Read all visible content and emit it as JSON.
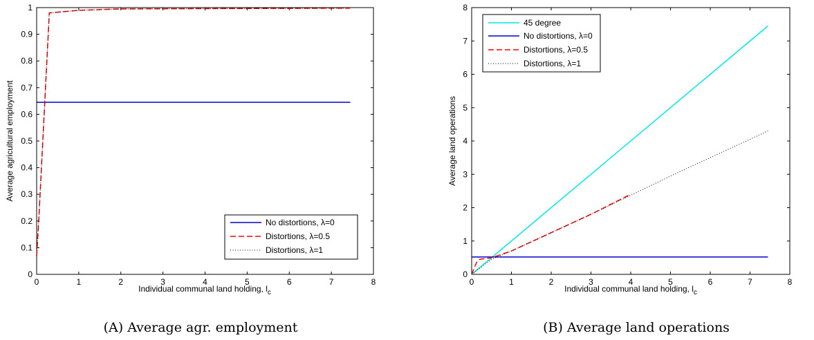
{
  "chart_data": [
    {
      "type": "line",
      "caption_tag": "(A)",
      "caption_text": "Average agr. employment",
      "xlabel": "Individual communal land holding, l",
      "xlabel_sub": "c",
      "ylabel": "Average agricultural employment",
      "xlim": [
        0,
        8
      ],
      "ylim": [
        0,
        1
      ],
      "xticks": [
        0,
        1,
        2,
        3,
        4,
        5,
        6,
        7,
        8
      ],
      "yticks": [
        0,
        0.1,
        0.2,
        0.3,
        0.4,
        0.5,
        0.6,
        0.7,
        0.8,
        0.9,
        1
      ],
      "legend_position": "lower-right",
      "series": [
        {
          "name": "No distortions, λ=0",
          "color": "#0000cc",
          "style": "solid",
          "points": [
            [
              0,
              0.645
            ],
            [
              7.45,
              0.645
            ]
          ]
        },
        {
          "name": "Distortions, λ=0.5",
          "color": "#ff0000",
          "style": "dashed",
          "points": [
            [
              0,
              0.07
            ],
            [
              0.05,
              0.2
            ],
            [
              0.3,
              0.98
            ],
            [
              1,
              0.99
            ],
            [
              2,
              0.995
            ],
            [
              7.45,
              0.998
            ]
          ]
        },
        {
          "name": "Distortions, λ=1",
          "color": "#000000",
          "style": "dotted",
          "points": [
            [
              0,
              0.07
            ],
            [
              0.05,
              0.2
            ],
            [
              0.3,
              0.98
            ],
            [
              1,
              0.99
            ],
            [
              2,
              0.995
            ],
            [
              7.45,
              0.998
            ]
          ]
        }
      ]
    },
    {
      "type": "line",
      "caption_tag": "(B)",
      "caption_text": "Average land operations",
      "xlabel": "Individual communal land holding, l",
      "xlabel_sub": "c",
      "ylabel": "Average land operations",
      "xlim": [
        0,
        8
      ],
      "ylim": [
        0,
        8
      ],
      "xticks": [
        0,
        1,
        2,
        3,
        4,
        5,
        6,
        7,
        8
      ],
      "yticks": [
        0,
        1,
        2,
        3,
        4,
        5,
        6,
        7,
        8
      ],
      "legend_position": "top-left",
      "series": [
        {
          "name": "45 degree",
          "color": "#00e5e5",
          "style": "solid",
          "points": [
            [
              0,
              0
            ],
            [
              7.45,
              7.45
            ]
          ]
        },
        {
          "name": "No distortions, λ=0",
          "color": "#0000cc",
          "style": "solid",
          "points": [
            [
              0,
              0.52
            ],
            [
              7.45,
              0.52
            ]
          ]
        },
        {
          "name": "Distortions, λ=0.5",
          "color": "#ff0000",
          "style": "dashed",
          "points": [
            [
              0,
              0
            ],
            [
              0.12,
              0.35
            ],
            [
              0.2,
              0.45
            ],
            [
              0.5,
              0.5
            ],
            [
              1,
              0.7
            ],
            [
              2,
              1.25
            ],
            [
              3,
              1.8
            ],
            [
              4,
              2.4
            ]
          ]
        },
        {
          "name": "Distortions, λ=1",
          "color": "#000000",
          "style": "dotted",
          "points": [
            [
              0,
              0
            ],
            [
              0.5,
              0.45
            ],
            [
              1,
              0.7
            ],
            [
              2,
              1.25
            ],
            [
              3,
              1.8
            ],
            [
              4,
              2.37
            ],
            [
              5,
              2.95
            ],
            [
              6,
              3.5
            ],
            [
              7.45,
              4.3
            ]
          ]
        }
      ]
    }
  ]
}
